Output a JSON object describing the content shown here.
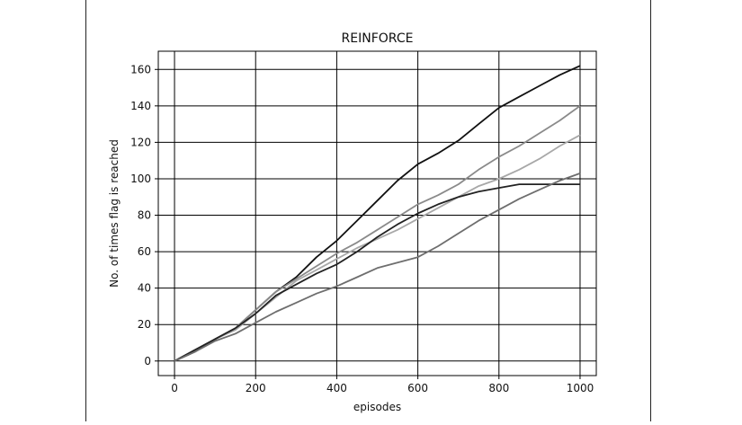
{
  "chart_data": {
    "type": "line",
    "title": "REINFORCE",
    "xlabel": "episodes",
    "ylabel": "No. of times flag is reached",
    "xlim": [
      -40,
      1040
    ],
    "ylim": [
      -8,
      170
    ],
    "xticks": [
      0,
      200,
      400,
      600,
      800,
      1000
    ],
    "yticks": [
      0,
      20,
      40,
      60,
      80,
      100,
      120,
      140,
      160
    ],
    "grid": true,
    "series": [
      {
        "color": "#111111",
        "x": [
          0,
          50,
          100,
          150,
          200,
          250,
          300,
          350,
          400,
          450,
          500,
          550,
          600,
          650,
          700,
          750,
          800,
          850,
          900,
          950,
          1000
        ],
        "y": [
          0,
          5,
          12,
          18,
          28,
          38,
          46,
          57,
          66,
          77,
          88,
          99,
          108,
          114,
          121,
          130,
          139,
          145,
          151,
          157,
          162
        ]
      },
      {
        "color": "#8a8a8a",
        "x": [
          0,
          50,
          100,
          150,
          200,
          250,
          300,
          350,
          400,
          450,
          500,
          550,
          600,
          650,
          700,
          750,
          800,
          850,
          900,
          950,
          1000
        ],
        "y": [
          0,
          6,
          12,
          18,
          28,
          38,
          45,
          52,
          59,
          65,
          72,
          79,
          86,
          91,
          97,
          105,
          112,
          118,
          125,
          132,
          140
        ]
      },
      {
        "color": "#a8a8a8",
        "x": [
          0,
          50,
          100,
          150,
          200,
          250,
          300,
          350,
          400,
          450,
          500,
          550,
          600,
          650,
          700,
          750,
          800,
          850,
          900,
          950,
          1000
        ],
        "y": [
          0,
          6,
          12,
          17,
          26,
          35,
          44,
          50,
          56,
          62,
          67,
          72,
          78,
          84,
          90,
          96,
          100,
          105,
          111,
          118,
          124
        ]
      },
      {
        "color": "#222222",
        "x": [
          0,
          50,
          100,
          150,
          200,
          250,
          300,
          350,
          400,
          450,
          500,
          550,
          600,
          650,
          700,
          750,
          800,
          850,
          900,
          950,
          1000
        ],
        "y": [
          0,
          6,
          12,
          18,
          26,
          36,
          42,
          48,
          53,
          60,
          68,
          75,
          81,
          86,
          90,
          93,
          95,
          97,
          97,
          97,
          97
        ]
      },
      {
        "color": "#6e6e6e",
        "x": [
          0,
          50,
          100,
          150,
          200,
          250,
          300,
          350,
          400,
          450,
          500,
          550,
          600,
          650,
          700,
          750,
          800,
          850,
          900,
          950,
          1000
        ],
        "y": [
          0,
          5,
          11,
          15,
          21,
          27,
          32,
          37,
          41,
          46,
          51,
          54,
          57,
          63,
          70,
          77,
          83,
          89,
          94,
          99,
          103
        ]
      }
    ]
  }
}
